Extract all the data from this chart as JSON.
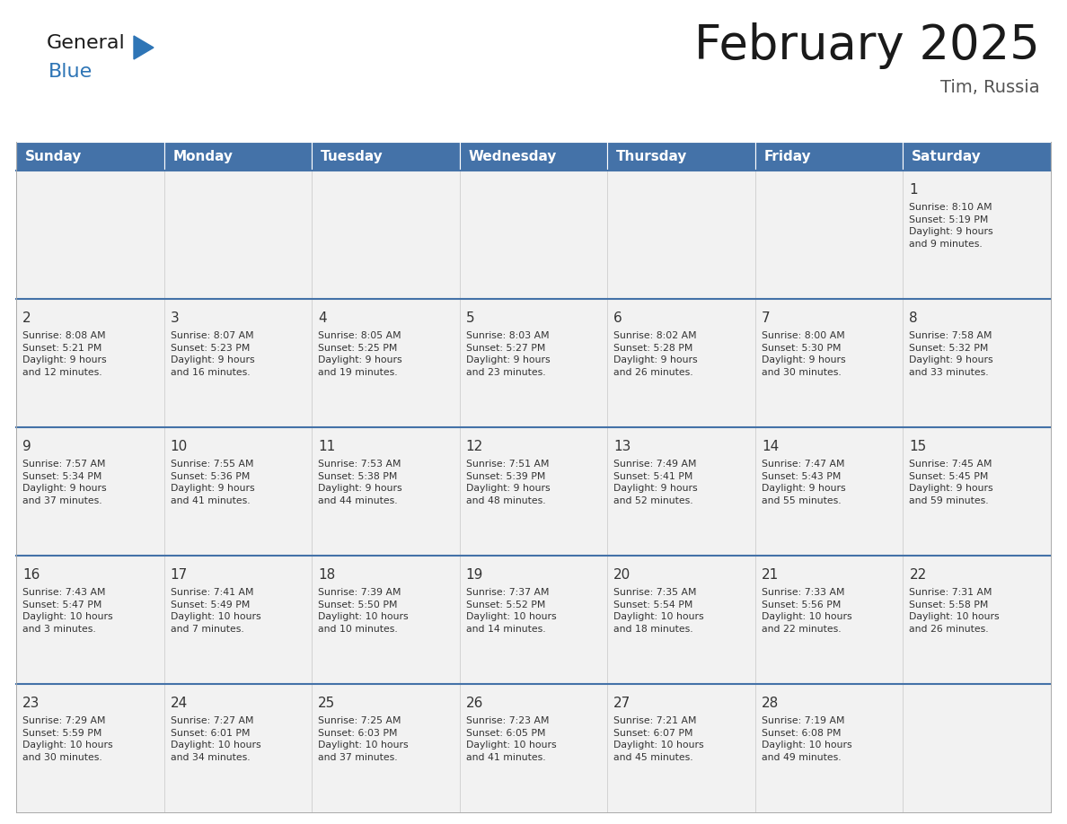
{
  "title": "February 2025",
  "subtitle": "Tim, Russia",
  "days_of_week": [
    "Sunday",
    "Monday",
    "Tuesday",
    "Wednesday",
    "Thursday",
    "Friday",
    "Saturday"
  ],
  "header_bg": "#4472a8",
  "header_text": "#ffffff",
  "cell_bg": "#f2f2f2",
  "cell_border_light": "#cccccc",
  "week_separator": "#4472a8",
  "day_number_color": "#333333",
  "info_text_color": "#333333",
  "calendar": [
    [
      null,
      null,
      null,
      null,
      null,
      null,
      {
        "day": 1,
        "sunrise": "8:10 AM",
        "sunset": "5:19 PM",
        "daylight": "9 hours\nand 9 minutes."
      }
    ],
    [
      {
        "day": 2,
        "sunrise": "8:08 AM",
        "sunset": "5:21 PM",
        "daylight": "9 hours\nand 12 minutes."
      },
      {
        "day": 3,
        "sunrise": "8:07 AM",
        "sunset": "5:23 PM",
        "daylight": "9 hours\nand 16 minutes."
      },
      {
        "day": 4,
        "sunrise": "8:05 AM",
        "sunset": "5:25 PM",
        "daylight": "9 hours\nand 19 minutes."
      },
      {
        "day": 5,
        "sunrise": "8:03 AM",
        "sunset": "5:27 PM",
        "daylight": "9 hours\nand 23 minutes."
      },
      {
        "day": 6,
        "sunrise": "8:02 AM",
        "sunset": "5:28 PM",
        "daylight": "9 hours\nand 26 minutes."
      },
      {
        "day": 7,
        "sunrise": "8:00 AM",
        "sunset": "5:30 PM",
        "daylight": "9 hours\nand 30 minutes."
      },
      {
        "day": 8,
        "sunrise": "7:58 AM",
        "sunset": "5:32 PM",
        "daylight": "9 hours\nand 33 minutes."
      }
    ],
    [
      {
        "day": 9,
        "sunrise": "7:57 AM",
        "sunset": "5:34 PM",
        "daylight": "9 hours\nand 37 minutes."
      },
      {
        "day": 10,
        "sunrise": "7:55 AM",
        "sunset": "5:36 PM",
        "daylight": "9 hours\nand 41 minutes."
      },
      {
        "day": 11,
        "sunrise": "7:53 AM",
        "sunset": "5:38 PM",
        "daylight": "9 hours\nand 44 minutes."
      },
      {
        "day": 12,
        "sunrise": "7:51 AM",
        "sunset": "5:39 PM",
        "daylight": "9 hours\nand 48 minutes."
      },
      {
        "day": 13,
        "sunrise": "7:49 AM",
        "sunset": "5:41 PM",
        "daylight": "9 hours\nand 52 minutes."
      },
      {
        "day": 14,
        "sunrise": "7:47 AM",
        "sunset": "5:43 PM",
        "daylight": "9 hours\nand 55 minutes."
      },
      {
        "day": 15,
        "sunrise": "7:45 AM",
        "sunset": "5:45 PM",
        "daylight": "9 hours\nand 59 minutes."
      }
    ],
    [
      {
        "day": 16,
        "sunrise": "7:43 AM",
        "sunset": "5:47 PM",
        "daylight": "10 hours\nand 3 minutes."
      },
      {
        "day": 17,
        "sunrise": "7:41 AM",
        "sunset": "5:49 PM",
        "daylight": "10 hours\nand 7 minutes."
      },
      {
        "day": 18,
        "sunrise": "7:39 AM",
        "sunset": "5:50 PM",
        "daylight": "10 hours\nand 10 minutes."
      },
      {
        "day": 19,
        "sunrise": "7:37 AM",
        "sunset": "5:52 PM",
        "daylight": "10 hours\nand 14 minutes."
      },
      {
        "day": 20,
        "sunrise": "7:35 AM",
        "sunset": "5:54 PM",
        "daylight": "10 hours\nand 18 minutes."
      },
      {
        "day": 21,
        "sunrise": "7:33 AM",
        "sunset": "5:56 PM",
        "daylight": "10 hours\nand 22 minutes."
      },
      {
        "day": 22,
        "sunrise": "7:31 AM",
        "sunset": "5:58 PM",
        "daylight": "10 hours\nand 26 minutes."
      }
    ],
    [
      {
        "day": 23,
        "sunrise": "7:29 AM",
        "sunset": "5:59 PM",
        "daylight": "10 hours\nand 30 minutes."
      },
      {
        "day": 24,
        "sunrise": "7:27 AM",
        "sunset": "6:01 PM",
        "daylight": "10 hours\nand 34 minutes."
      },
      {
        "day": 25,
        "sunrise": "7:25 AM",
        "sunset": "6:03 PM",
        "daylight": "10 hours\nand 37 minutes."
      },
      {
        "day": 26,
        "sunrise": "7:23 AM",
        "sunset": "6:05 PM",
        "daylight": "10 hours\nand 41 minutes."
      },
      {
        "day": 27,
        "sunrise": "7:21 AM",
        "sunset": "6:07 PM",
        "daylight": "10 hours\nand 45 minutes."
      },
      {
        "day": 28,
        "sunrise": "7:19 AM",
        "sunset": "6:08 PM",
        "daylight": "10 hours\nand 49 minutes."
      },
      null
    ]
  ],
  "logo_triangle_color": "#2e75b6"
}
